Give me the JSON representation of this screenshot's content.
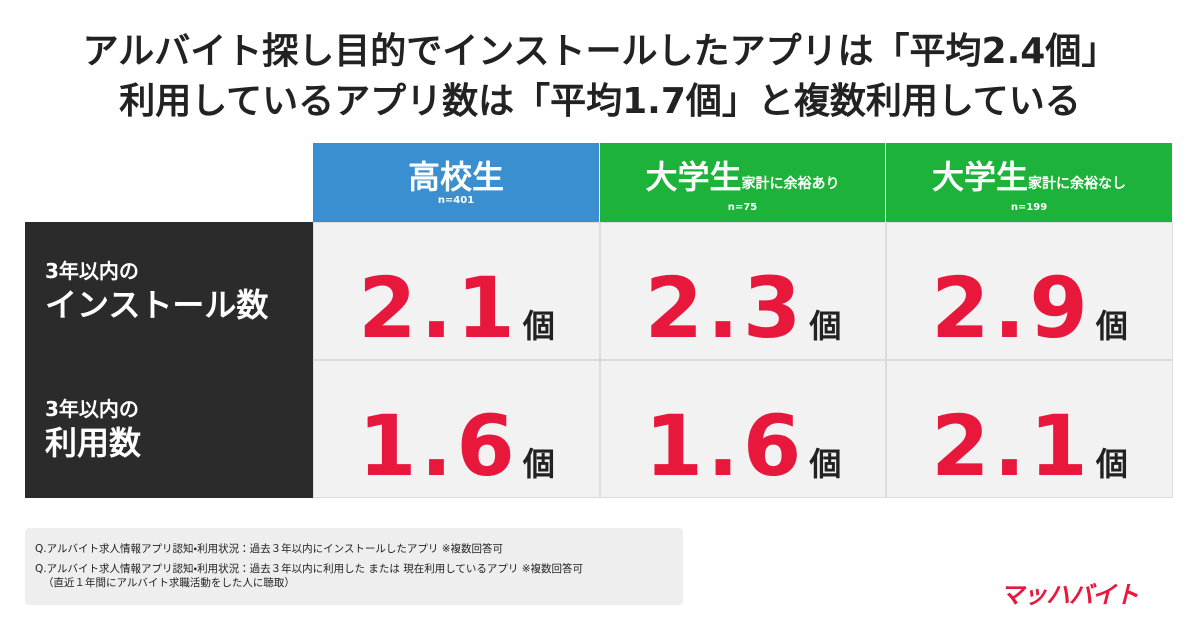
{
  "header": {
    "title_lines": [
      "アルバイト探し目的でインストールしたアプリは「平均2.4個」",
      "利用しているアプリ数は「平均1.7個」と複数利用している"
    ]
  },
  "table": {
    "columns": [
      {
        "name": "高校生",
        "n": "n=401"
      },
      {
        "name": "大学生",
        "sub": "家計に余裕あり",
        "n": "n=75"
      },
      {
        "name": "大学生",
        "sub": "家計に余裕なし",
        "n": "n=199"
      }
    ],
    "unit": "個",
    "rows": [
      {
        "label_lines": [
          "3年以内の",
          "インストール数"
        ],
        "values": [
          2.1,
          2.3,
          2.9
        ]
      },
      {
        "label_lines": [
          "3年以内の",
          "利用数"
        ],
        "values": [
          1.6,
          1.6,
          2.1
        ]
      }
    ]
  },
  "notes": [
    "Q.アルバイト求人情報アプリ認知・利用状況：過去３年以内にインストールしたアプリ ※複数回答可",
    "Q.アルバイト求人情報アプリ認知・利用状況：過去３年以内に利用した または 現在利用しているアプリ ※複数回答可",
    "（直近１年間にアルバイト求職活動をした人に聴取）"
  ],
  "logo": "マッハバイト"
}
